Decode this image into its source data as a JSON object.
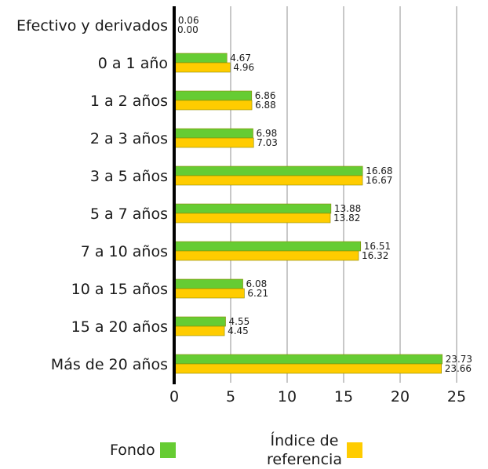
{
  "chart_data": {
    "type": "bar",
    "orientation": "horizontal",
    "categories": [
      "Efectivo y derivados",
      "0 a 1 año",
      "1 a 2 años",
      "2 a 3 años",
      "3 a 5 años",
      "5 a 7 años",
      "7 a 10 años",
      "10 a 15 años",
      "15 a 20 años",
      "Más de 20 años"
    ],
    "series": [
      {
        "name": "Fondo",
        "color": "#66cc33",
        "values": [
          0.06,
          4.67,
          6.86,
          6.98,
          16.68,
          13.88,
          16.51,
          6.08,
          4.55,
          23.73
        ],
        "labels": [
          "0.06",
          "4.67",
          "6.86",
          "6.98",
          "16.68",
          "13.88",
          "16.51",
          "6.08",
          "4.55",
          "23.73"
        ]
      },
      {
        "name": "Índice de referencia",
        "color": "#ffcc00",
        "values": [
          0.0,
          4.96,
          6.88,
          7.03,
          16.67,
          13.82,
          16.32,
          6.21,
          4.45,
          23.66
        ],
        "labels": [
          "0.00",
          "4.96",
          "6.88",
          "7.03",
          "16.67",
          "13.82",
          "16.32",
          "6.21",
          "4.45",
          "23.66"
        ]
      }
    ],
    "xlim": [
      0,
      25
    ],
    "xticks": [
      "0",
      "5",
      "10",
      "15",
      "20",
      "25"
    ],
    "grid": "vertical",
    "legend_position": "bottom"
  },
  "legend": {
    "fondo": "Fondo",
    "indice_line1": "Índice de",
    "indice_line2": "referencia",
    "fondo_color": "#66cc33",
    "indice_color": "#ffcc00"
  }
}
